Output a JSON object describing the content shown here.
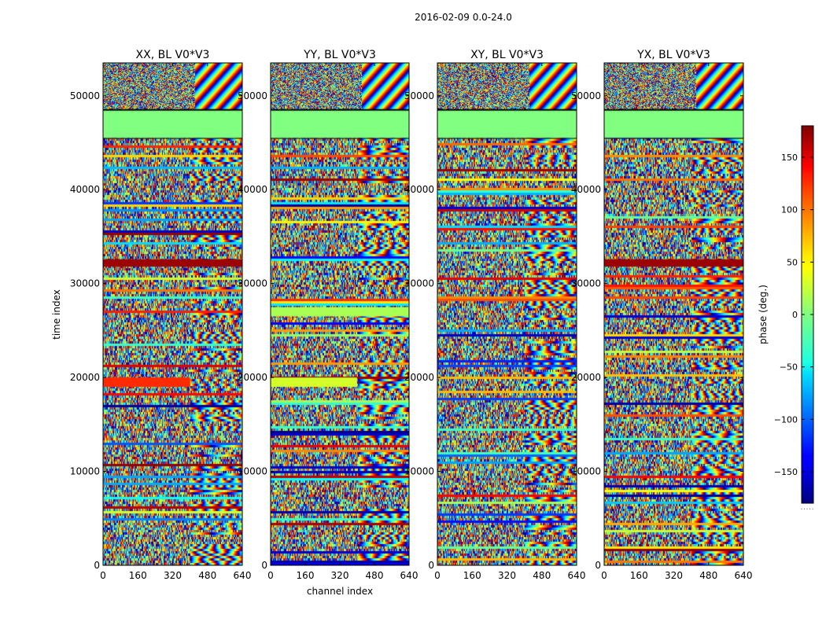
{
  "figure": {
    "suptitle": "2016-02-09 0.0-24.0"
  },
  "chart_data": [
    {
      "type": "heatmap",
      "title": "XX, BL V0*V3",
      "xlabel": "channel index",
      "ylabel": "time index",
      "xlim": [
        0,
        640
      ],
      "ylim": [
        0,
        53500
      ],
      "xticks": [
        "0",
        "160",
        "320",
        "480",
        "640"
      ],
      "yticks": [
        "0",
        "10000",
        "20000",
        "30000",
        "40000",
        "50000"
      ],
      "value_range": [
        -180,
        180
      ],
      "regions": [
        {
          "t_from": 45500,
          "t_to": 48500,
          "phase": 0,
          "description": "flagged constant block"
        },
        {
          "t_from": 48500,
          "t_to": 53500,
          "phase": "noise + fringes above channel ~420"
        },
        {
          "t_from": 19000,
          "t_to": 20000,
          "phase": 120,
          "description": "orange band channels 0-400"
        },
        {
          "t_from": 31800,
          "t_to": 32600,
          "phase": 170,
          "description": "dark red band"
        }
      ]
    },
    {
      "type": "heatmap",
      "title": "YY, BL V0*V3",
      "xlabel": "channel index",
      "ylabel": "",
      "xlim": [
        0,
        640
      ],
      "ylim": [
        0,
        53500
      ],
      "xticks": [
        "0",
        "160",
        "320",
        "480",
        "640"
      ],
      "yticks": [
        "0",
        "10000",
        "20000",
        "30000",
        "40000",
        "50000"
      ],
      "value_range": [
        -180,
        180
      ],
      "regions": [
        {
          "t_from": 45500,
          "t_to": 48500,
          "phase": 0,
          "description": "flagged constant block"
        },
        {
          "t_from": 19000,
          "t_to": 20000,
          "phase": 30,
          "description": "yellow-green band channels 0-400"
        },
        {
          "t_from": 26500,
          "t_to": 27500,
          "phase": 15,
          "description": "light green band"
        }
      ]
    },
    {
      "type": "heatmap",
      "title": "XY, BL V0*V3",
      "xlabel": "",
      "ylabel": "",
      "xlim": [
        0,
        640
      ],
      "ylim": [
        0,
        53500
      ],
      "xticks": [
        "0",
        "160",
        "320",
        "480",
        "640"
      ],
      "yticks": [
        "0",
        "10000",
        "20000",
        "30000",
        "40000",
        "50000"
      ],
      "value_range": [
        -180,
        180
      ],
      "regions": [
        {
          "t_from": 45500,
          "t_to": 48500,
          "phase": 0,
          "description": "flagged constant block"
        }
      ]
    },
    {
      "type": "heatmap",
      "title": "YX, BL V0*V3",
      "xlabel": "",
      "ylabel": "",
      "xlim": [
        0,
        640
      ],
      "ylim": [
        0,
        53500
      ],
      "xticks": [
        "0",
        "160",
        "320",
        "480",
        "640"
      ],
      "yticks": [
        "0",
        "10000",
        "20000",
        "30000",
        "40000",
        "50000"
      ],
      "value_range": [
        -180,
        180
      ],
      "regions": [
        {
          "t_from": 45500,
          "t_to": 48500,
          "phase": 0,
          "description": "flagged constant block"
        },
        {
          "t_from": 31800,
          "t_to": 32600,
          "phase": 170,
          "description": "dark red band"
        }
      ]
    }
  ],
  "colorbar": {
    "label": "phase (deg.)",
    "range": [
      -180,
      180
    ],
    "ticks": [
      "150",
      "100",
      "50",
      "0",
      "−50",
      "−100",
      "−150"
    ],
    "tick_values": [
      150,
      100,
      50,
      0,
      -50,
      -100,
      -150
    ],
    "colormap": "jet",
    "footer": "....."
  }
}
